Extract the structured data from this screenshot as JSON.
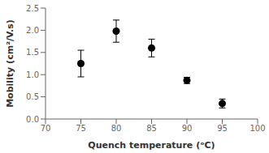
{
  "chart_data": {
    "type": "scatter",
    "xlabel": "Quench temperature (ᵒC)",
    "ylabel": "Mobility (cm²/V.s)",
    "x": [
      75,
      80,
      85,
      90,
      95
    ],
    "values": [
      1.25,
      1.98,
      1.6,
      0.87,
      0.35
    ],
    "yerr": [
      0.3,
      0.25,
      0.2,
      0.07,
      0.1
    ],
    "xlim": [
      70,
      100
    ],
    "ylim": [
      0,
      2.5
    ],
    "xticks": [
      70,
      75,
      80,
      85,
      90,
      95,
      100
    ],
    "yticks": [
      {
        "value": 0,
        "label": "0.0"
      },
      0.5,
      {
        "value": 1.0,
        "label": "1.0"
      },
      1.5,
      {
        "value": 2.0,
        "label": "2.0"
      },
      2.5
    ],
    "color": "black",
    "marker": "circle",
    "grid": false
  }
}
